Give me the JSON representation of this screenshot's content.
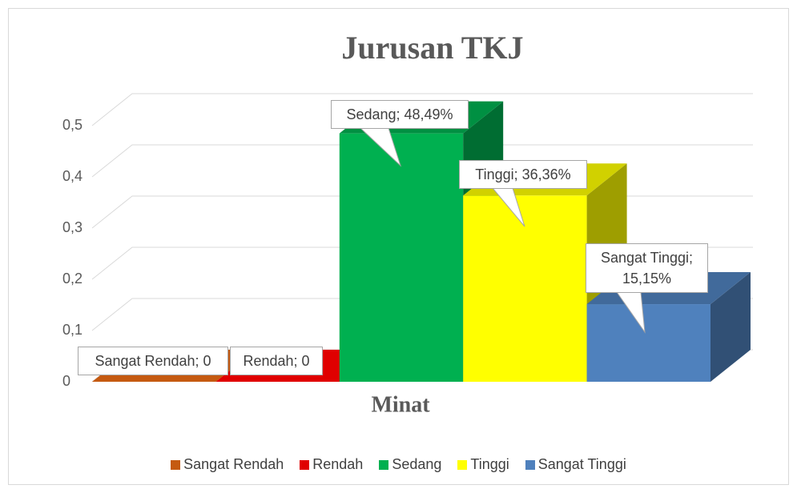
{
  "chart_data": {
    "type": "bar3d",
    "title": "Jurusan TKJ",
    "x_label": "Minat",
    "categories": [
      "Minat"
    ],
    "series": [
      {
        "name": "Sangat Rendah",
        "color": "#c55a11",
        "values": [
          0
        ],
        "value_labels": [
          "Sangat Rendah; 0"
        ]
      },
      {
        "name": "Rendah",
        "color": "#e00000",
        "values": [
          0
        ],
        "value_labels": [
          "Rendah; 0"
        ]
      },
      {
        "name": "Sedang",
        "color": "#00b050",
        "values": [
          0.4849
        ],
        "value_labels": [
          "Sedang; 48,49%"
        ]
      },
      {
        "name": "Tinggi",
        "color": "#ffff00",
        "values": [
          0.3636
        ],
        "value_labels": [
          "Tinggi; 36,36%"
        ]
      },
      {
        "name": "Sangat Tinggi",
        "color": "#4f81bd",
        "values": [
          0.1515
        ],
        "value_labels": [
          "Sangat Tinggi; 15,15%"
        ]
      }
    ],
    "ylim": [
      0,
      0.5
    ],
    "yticks": [
      0,
      {
        "value": 0.1,
        "label": "0,1"
      },
      {
        "value": 0.2,
        "label": "0,2"
      },
      {
        "value": 0.3,
        "label": "0,3"
      },
      {
        "value": 0.4,
        "label": "0,4"
      },
      {
        "value": 0.5,
        "label": "0,5"
      }
    ],
    "grid": true,
    "legend": "bottom"
  }
}
